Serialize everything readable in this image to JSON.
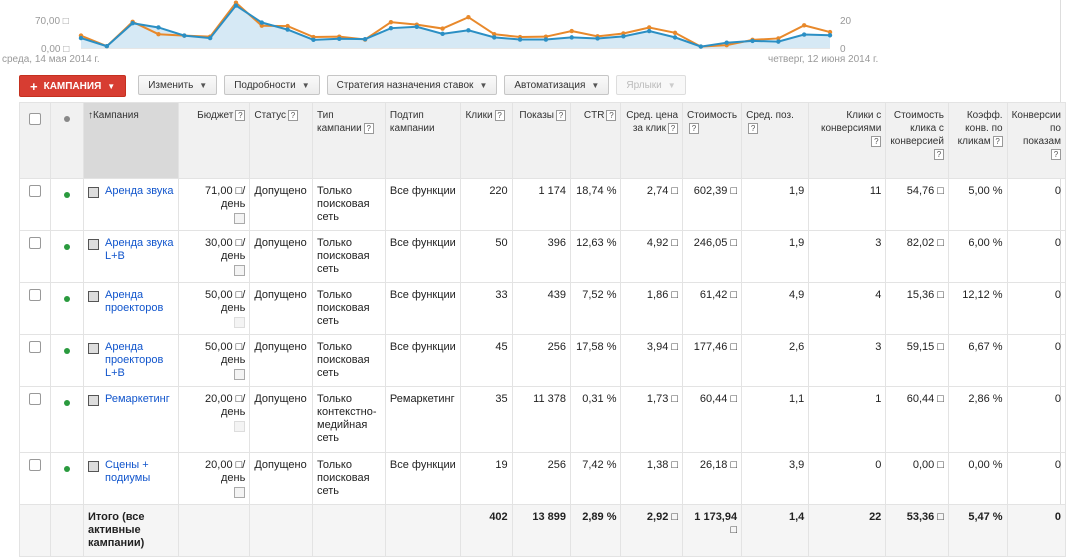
{
  "chart": {
    "y_left_ticks": [
      "70,00 □",
      "0,00 □"
    ],
    "y_right_ticks": [
      "20",
      "0"
    ],
    "x_start": "среда, 14 мая 2014 г.",
    "x_end": "четверг, 12 июня 2014 г.",
    "colors": {
      "blue": "#2b8fc4",
      "orange": "#e8892b",
      "fill": "#d6e9f5"
    },
    "series_blue": [
      28,
      5,
      70,
      58,
      35,
      28,
      120,
      72,
      52,
      23,
      26,
      25,
      56,
      60,
      40,
      50,
      30,
      24,
      24,
      30,
      27,
      33,
      48,
      30,
      4,
      15,
      20,
      18,
      38,
      36
    ],
    "series_orange": [
      35,
      5,
      74,
      39,
      35,
      32,
      128,
      63,
      62,
      31,
      32,
      24,
      73,
      66,
      55,
      87,
      39,
      31,
      32,
      48,
      33,
      41,
      58,
      43,
      4,
      8,
      23,
      27,
      64,
      45
    ]
  },
  "toolbar": {
    "add_campaign": "КАМПАНИЯ",
    "edit": "Изменить",
    "details": "Подробности",
    "bid_strategy": "Стратегия назначения ставок",
    "automation": "Автоматизация",
    "labels": "Ярлыки"
  },
  "table": {
    "headers": {
      "campaign": "Кампания",
      "budget": "Бюджет",
      "status": "Статус",
      "type": "Тип кампании",
      "subtype": "Подтип кампании",
      "clicks": "Клики",
      "impressions": "Показы",
      "ctr": "CTR",
      "avg_cpc": "Сред. цена за клик",
      "cost": "Стоимость",
      "avg_pos": "Сред. поз.",
      "conv_clicks": "Клики с конверсиями",
      "cost_per_conv": "Стоимость клика с конверсией",
      "conv_rate": "Коэфф. конв. по кликам",
      "view_through": "Конверсии по показам"
    },
    "rows": [
      {
        "name": "Аренда звука",
        "budget": "71,00 □/день",
        "status": "Допущено",
        "type": "Только поисковая сеть",
        "subtype": "Все функции",
        "clicks": "220",
        "impressions": "1 174",
        "ctr": "18,74 %",
        "avg_cpc": "2,74 □",
        "cost": "602,39 □",
        "avg_pos": "1,9",
        "conv_clicks": "11",
        "cost_per_conv": "54,76 □",
        "conv_rate": "5,00 %",
        "view_through": "0"
      },
      {
        "name": "Аренда звука L+B",
        "budget": "30,00 □/день",
        "status": "Допущено",
        "type": "Только поисковая сеть",
        "subtype": "Все функции",
        "clicks": "50",
        "impressions": "396",
        "ctr": "12,63 %",
        "avg_cpc": "4,92 □",
        "cost": "246,05 □",
        "avg_pos": "1,9",
        "conv_clicks": "3",
        "cost_per_conv": "82,02 □",
        "conv_rate": "6,00 %",
        "view_through": "0"
      },
      {
        "name": "Аренда проекторов",
        "budget": "50,00 □/день",
        "status": "Допущено",
        "type": "Только поисковая сеть",
        "subtype": "Все функции",
        "clicks": "33",
        "impressions": "439",
        "ctr": "7,52 %",
        "avg_cpc": "1,86 □",
        "cost": "61,42 □",
        "avg_pos": "4,9",
        "conv_clicks": "4",
        "cost_per_conv": "15,36 □",
        "conv_rate": "12,12 %",
        "view_through": "0"
      },
      {
        "name": "Аренда проекторов L+B",
        "budget": "50,00 □/день",
        "status": "Допущено",
        "type": "Только поисковая сеть",
        "subtype": "Все функции",
        "clicks": "45",
        "impressions": "256",
        "ctr": "17,58 %",
        "avg_cpc": "3,94 □",
        "cost": "177,46 □",
        "avg_pos": "2,6",
        "conv_clicks": "3",
        "cost_per_conv": "59,15 □",
        "conv_rate": "6,67 %",
        "view_through": "0"
      },
      {
        "name": "Ремаркетинг",
        "budget": "20,00 □/день",
        "status": "Допущено",
        "type": "Только контекстно-медийная сеть",
        "subtype": "Ремаркетинг",
        "clicks": "35",
        "impressions": "11 378",
        "ctr": "0,31 %",
        "avg_cpc": "1,73 □",
        "cost": "60,44 □",
        "avg_pos": "1,1",
        "conv_clicks": "1",
        "cost_per_conv": "60,44 □",
        "conv_rate": "2,86 %",
        "view_through": "0"
      },
      {
        "name": "Сцены + подиумы",
        "budget": "20,00 □/день",
        "status": "Допущено",
        "type": "Только поисковая сеть",
        "subtype": "Все функции",
        "clicks": "19",
        "impressions": "256",
        "ctr": "7,42 %",
        "avg_cpc": "1,38 □",
        "cost": "26,18 □",
        "avg_pos": "3,9",
        "conv_clicks": "0",
        "cost_per_conv": "0,00 □",
        "conv_rate": "0,00 %",
        "view_through": "0"
      }
    ],
    "total": {
      "label": "Итого (все активные кампании)",
      "clicks": "402",
      "impressions": "13 899",
      "ctr": "2,89 %",
      "avg_cpc": "2,92 □",
      "cost": "1 173,94 □",
      "avg_pos": "1,4",
      "conv_clicks": "22",
      "cost_per_conv": "53,36 □",
      "conv_rate": "5,47 %",
      "view_through": "0"
    }
  }
}
